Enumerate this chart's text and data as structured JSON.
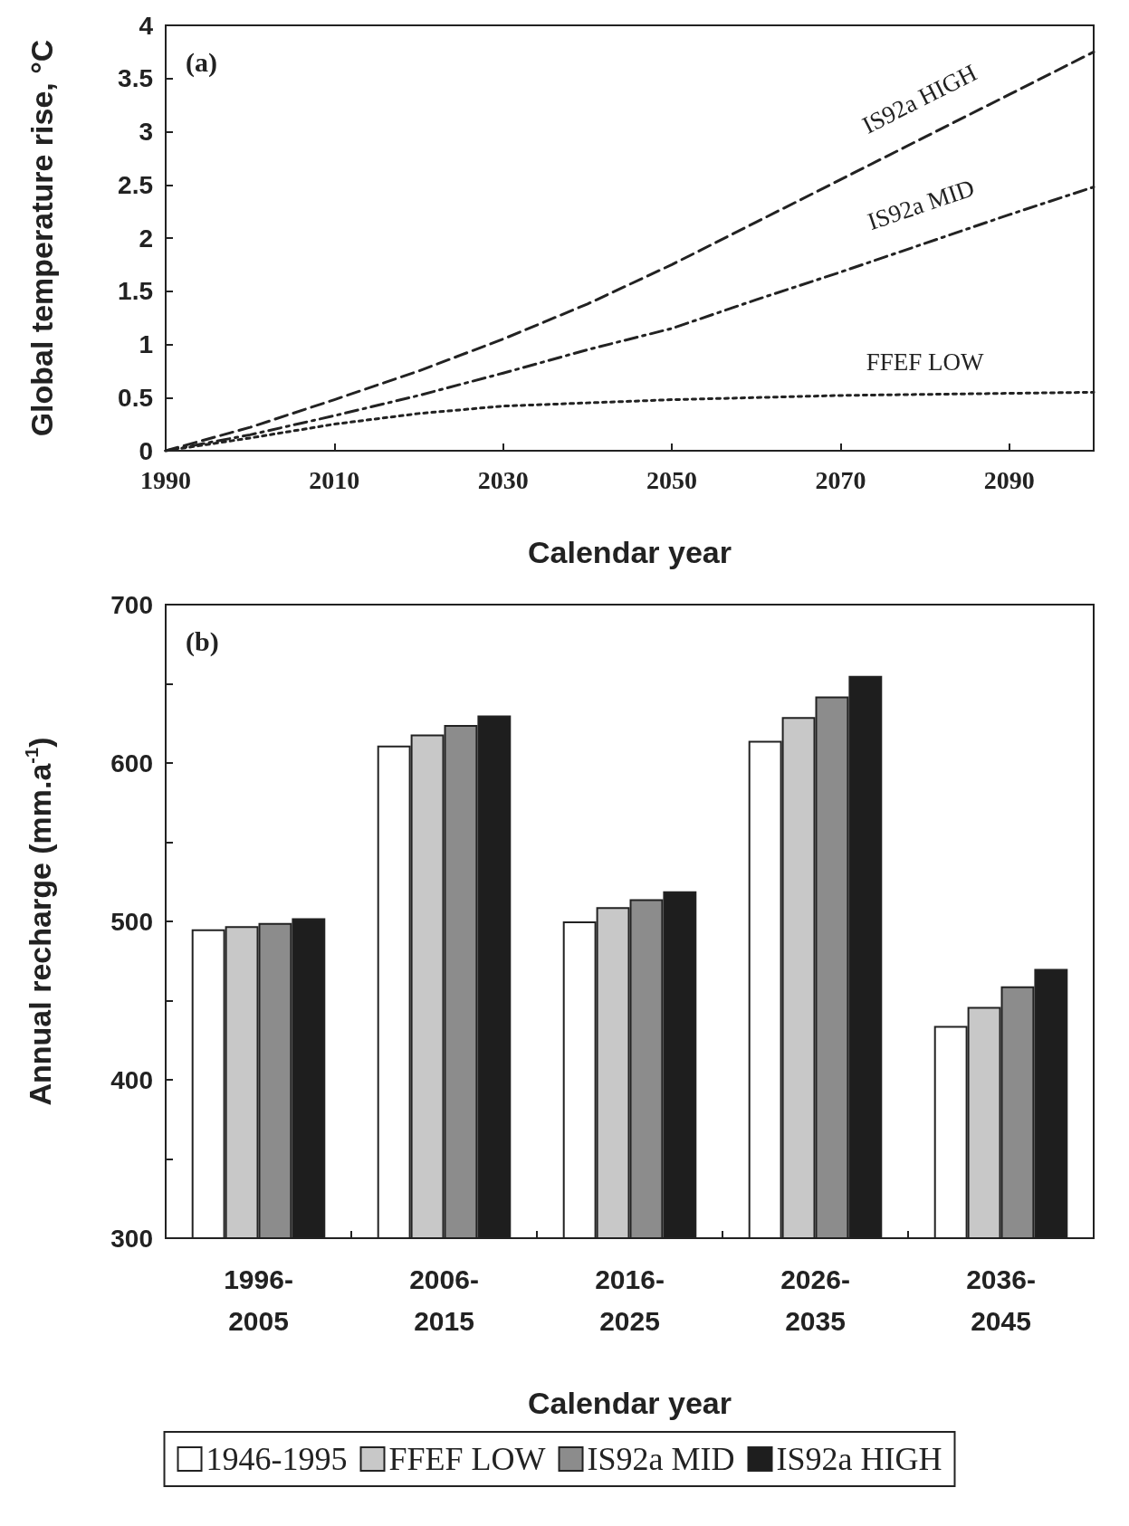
{
  "chart_data": [
    {
      "type": "line",
      "xlabel": "Calendar year",
      "ylabel": "Global temperature rise, °C",
      "annotations": [
        "(a)"
      ],
      "x": [
        1990,
        2000,
        2010,
        2020,
        2030,
        2040,
        2050,
        2060,
        2070,
        2080,
        2090,
        2100
      ],
      "xlim": [
        1990,
        2100
      ],
      "xticks": [
        1990,
        2010,
        2030,
        2050,
        2070,
        2090
      ],
      "ylim": [
        0,
        4
      ],
      "yticks": [
        0,
        0.5,
        1,
        1.5,
        2,
        2.5,
        3,
        3.5,
        4
      ],
      "grid": false,
      "legend": false,
      "marker": "none",
      "series": [
        {
          "name": "IS92a HIGH",
          "color": "#222222",
          "line_style": "dashed",
          "values": [
            0,
            0.22,
            0.48,
            0.75,
            1.05,
            1.38,
            1.75,
            2.15,
            2.55,
            2.95,
            3.35,
            3.75
          ]
        },
        {
          "name": "IS92a MID",
          "color": "#222222",
          "line_style": "dashdot",
          "values": [
            0,
            0.15,
            0.33,
            0.52,
            0.73,
            0.95,
            1.15,
            1.42,
            1.68,
            1.95,
            2.22,
            2.48
          ]
        },
        {
          "name": "FFEF LOW",
          "color": "#222222",
          "line_style": "dotted",
          "values": [
            0,
            0.12,
            0.25,
            0.35,
            0.42,
            0.45,
            0.48,
            0.5,
            0.52,
            0.53,
            0.54,
            0.55
          ]
        }
      ]
    },
    {
      "type": "bar",
      "xlabel": "Calendar year",
      "ylabel": "Annual recharge (mm.a$^{-1}$)",
      "annotations": [
        "(b)"
      ],
      "categories": [
        "1996-2005",
        "2006-2015",
        "2016-2025",
        "2026-2035",
        "2036-2045"
      ],
      "ylim": [
        300,
        700
      ],
      "yticks": [
        300,
        400,
        500,
        600,
        700
      ],
      "grid": false,
      "legend": "bottom",
      "series": [
        {
          "name": "1946-1995",
          "color": "#ffffff",
          "values": [
            495,
            611,
            500,
            614,
            434
          ]
        },
        {
          "name": "FFEF LOW",
          "color": "#c8c8c8",
          "values": [
            497,
            618,
            509,
            629,
            446
          ]
        },
        {
          "name": "IS92a MID",
          "color": "#8c8c8c",
          "values": [
            499,
            624,
            514,
            642,
            459
          ]
        },
        {
          "name": "IS92a HIGH",
          "color": "#1e1e1e",
          "values": [
            502,
            630,
            519,
            655,
            470
          ]
        }
      ]
    }
  ]
}
